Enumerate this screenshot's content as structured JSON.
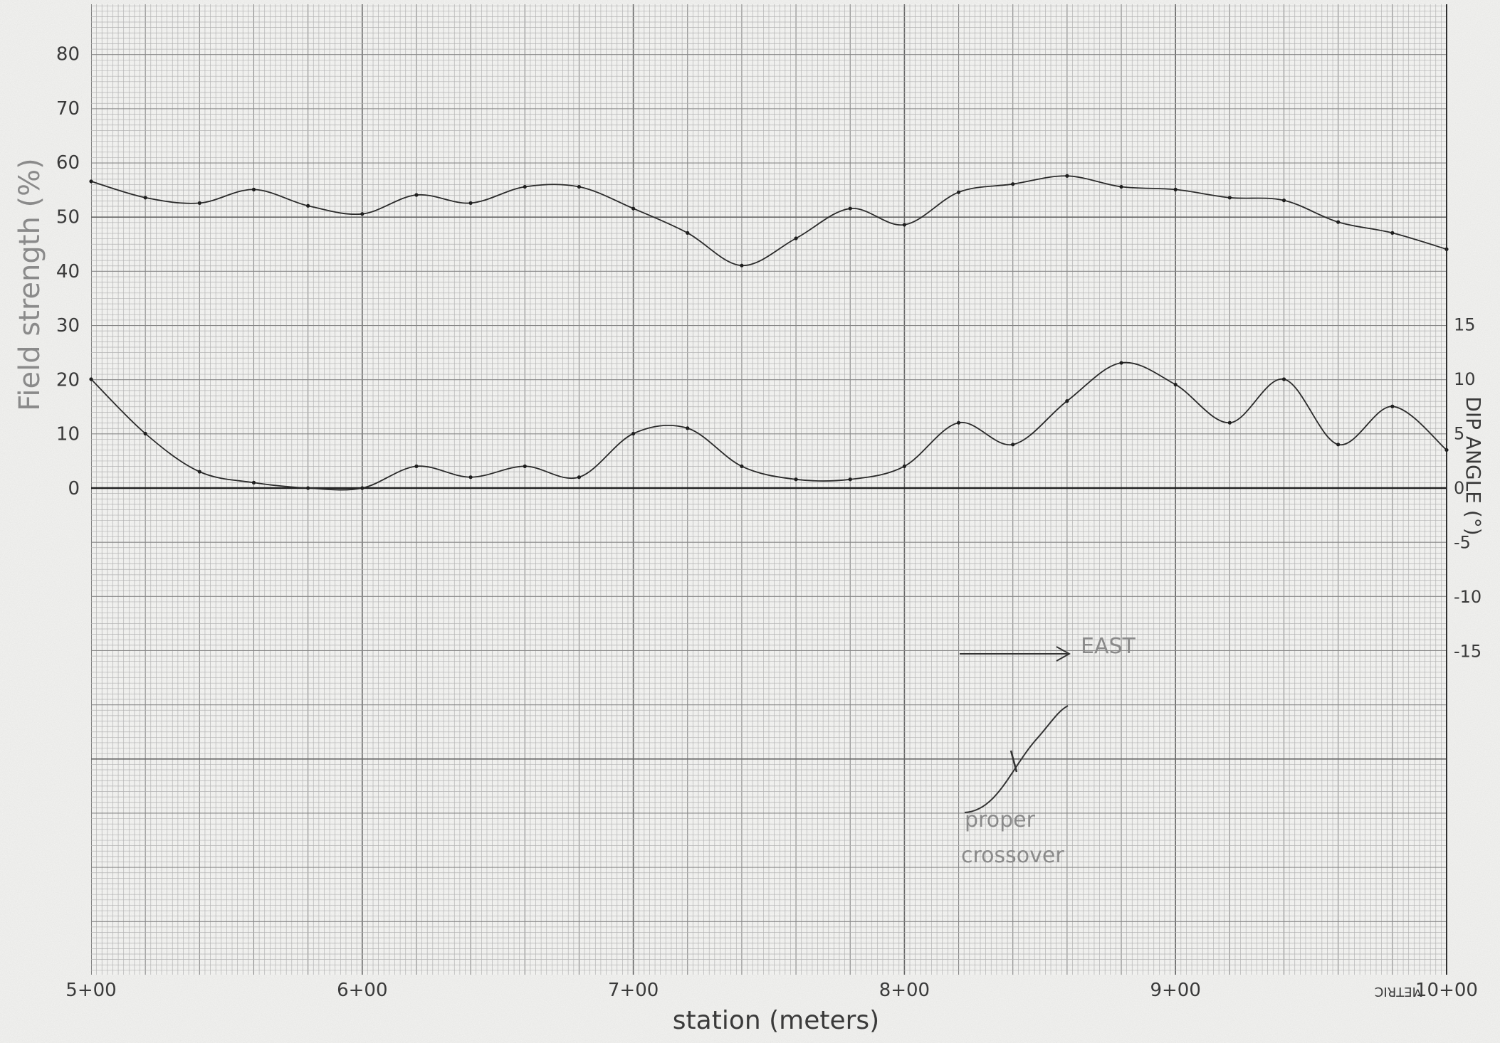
{
  "chart_data": {
    "type": "line",
    "xlabel": "station (meters)",
    "ylabel_left": "Field strength (%)",
    "ylabel_right": "DIP ANGLE (°)",
    "x_tick_labels": [
      "5+00",
      "6+00",
      "7+00",
      "8+00",
      "9+00",
      "10+00"
    ],
    "x_ticks": [
      500,
      600,
      700,
      800,
      900,
      1000
    ],
    "xlim": [
      500,
      1000
    ],
    "ylim_left": [
      0,
      80
    ],
    "y_ticks_left": [
      0,
      10,
      20,
      30,
      40,
      50,
      60,
      70,
      80
    ],
    "y_ticks_right": [
      15,
      10,
      5,
      0,
      -5,
      -10,
      -15
    ],
    "paper_mark": "METRIC",
    "grid": true,
    "series": [
      {
        "axis": "left",
        "x": [
          500,
          520,
          540,
          560,
          580,
          600,
          620,
          640,
          660,
          680,
          700,
          720,
          740,
          760,
          780,
          800,
          820,
          840,
          860,
          880,
          900,
          920,
          940,
          960,
          980,
          1000
        ],
        "values": [
          56.5,
          53.5,
          52.5,
          55,
          52,
          50.5,
          54,
          52.5,
          55.5,
          55.5,
          51.5,
          47,
          41,
          46,
          51.5,
          48.5,
          54.5,
          56,
          57.5,
          55.5,
          55,
          53.5,
          53,
          49,
          47,
          44
        ]
      },
      {
        "axis": "right",
        "x": [
          500,
          520,
          540,
          560,
          580,
          600,
          620,
          640,
          660,
          680,
          700,
          720,
          740,
          760,
          780,
          800,
          820,
          840,
          860,
          880,
          900,
          920,
          940,
          960,
          980,
          1000
        ],
        "values": [
          10,
          5,
          1.5,
          0.5,
          0,
          0,
          2,
          1,
          2,
          1,
          5,
          5.5,
          2,
          0.8,
          0.8,
          2,
          6,
          4,
          8,
          11.5,
          9.5,
          6,
          10,
          4,
          7.5,
          3.5
        ]
      }
    ],
    "annotations": [
      {
        "text": "EAST"
      },
      {
        "text": "proper\ncrossover"
      }
    ]
  }
}
